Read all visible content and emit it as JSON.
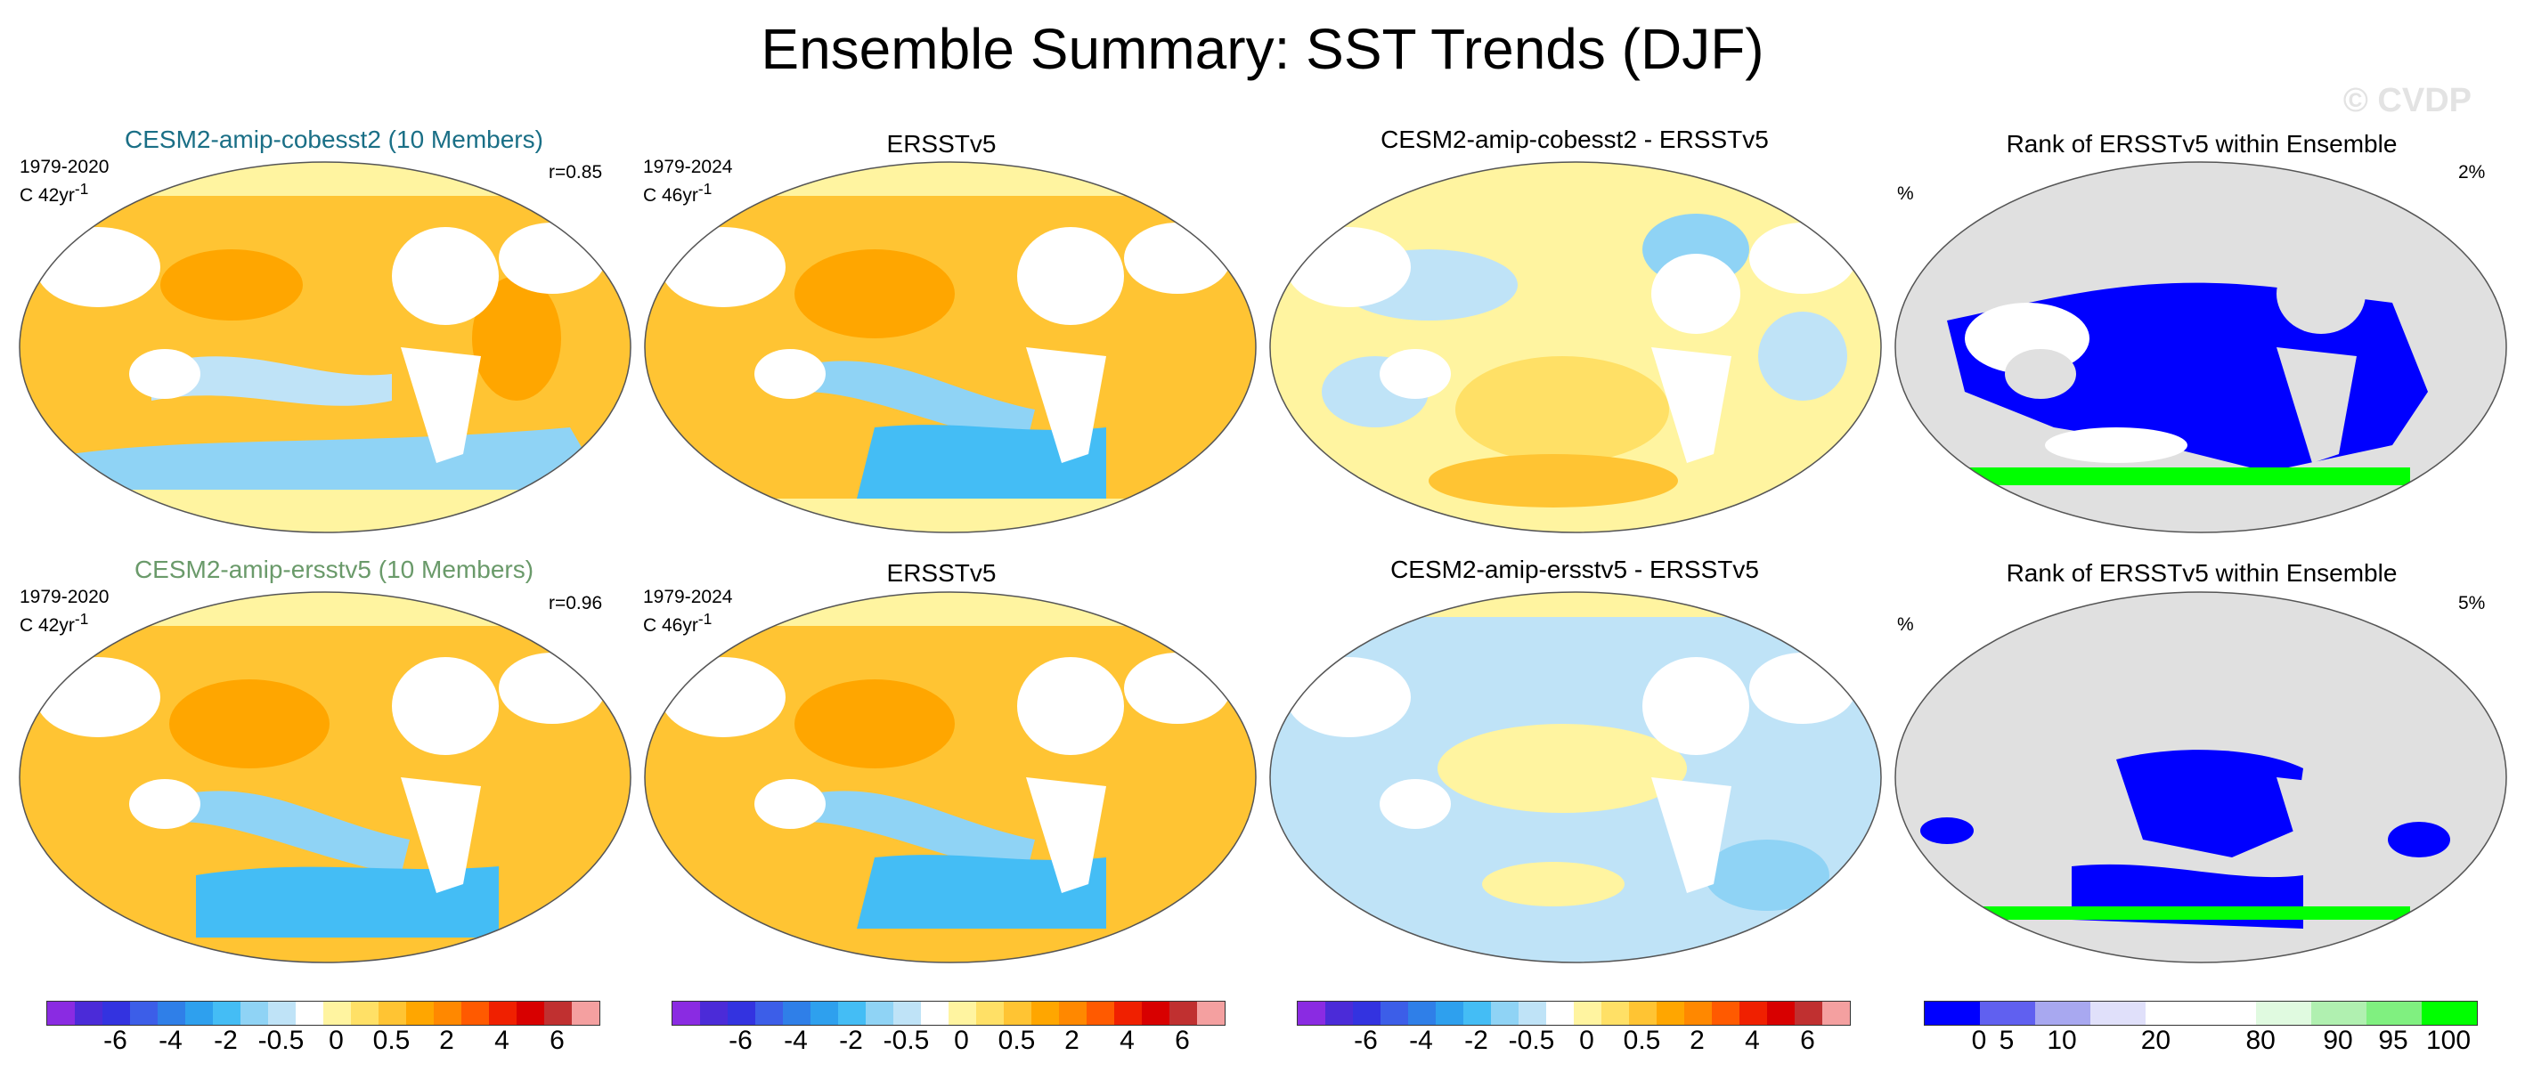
{
  "title": "Ensemble Summary: SST Trends (DJF)",
  "watermark": "© CVDP",
  "rows": [
    {
      "model_title": "CESM2-amip-cobesst2 (10 Members)",
      "model_title_color": "#1a6f86",
      "model_years": "1979-2020",
      "model_units": "C 42yr",
      "model_corr": "r=0.85",
      "obs_title": "ERSSTv5",
      "obs_years": "1979-2024",
      "obs_units": "C 46yr",
      "diff_title": "CESM2-amip-cobesst2 - ERSSTv5",
      "rank_title": "Rank of ERSSTv5 within Ensemble",
      "rank_unit": "%",
      "rank_pct": "2%"
    },
    {
      "model_title": "CESM2-amip-ersstv5 (10 Members)",
      "model_title_color": "#6a9a6a",
      "model_years": "1979-2020",
      "model_units": "C 42yr",
      "model_corr": "r=0.96",
      "obs_title": "ERSSTv5",
      "obs_years": "1979-2024",
      "obs_units": "C 46yr",
      "diff_title": "CESM2-amip-ersstv5 - ERSSTv5",
      "rank_title": "Rank of ERSSTv5 within Ensemble",
      "rank_unit": "%",
      "rank_pct": "5%"
    }
  ],
  "units_superscript": "-1",
  "trend_colorbar": {
    "colors": [
      "#8a2be2",
      "#4b2bd8",
      "#3333e0",
      "#3c5ee8",
      "#2f7fe8",
      "#2ea0ee",
      "#44bdf5",
      "#8fd3f5",
      "#bfe3f7",
      "#ffffff",
      "#fff4a0",
      "#ffe066",
      "#ffc433",
      "#ffa600",
      "#ff8800",
      "#ff5a00",
      "#f02000",
      "#d80000",
      "#c03030",
      "#f4a0a0"
    ],
    "labels": [
      "-6",
      "-4",
      "-2",
      "-0.5",
      "0",
      "0.5",
      "2",
      "4",
      "6"
    ]
  },
  "rank_colorbar": {
    "colors": [
      "#0000ff",
      "#6060f0",
      "#a8a8f0",
      "#e0e0fa",
      "#ffffff",
      "#ffffff",
      "#e0fae0",
      "#b0f0b0",
      "#80f080",
      "#00ff00"
    ],
    "labels": [
      "0",
      "5",
      "10",
      "20",
      "80",
      "90",
      "95",
      "100"
    ]
  }
}
